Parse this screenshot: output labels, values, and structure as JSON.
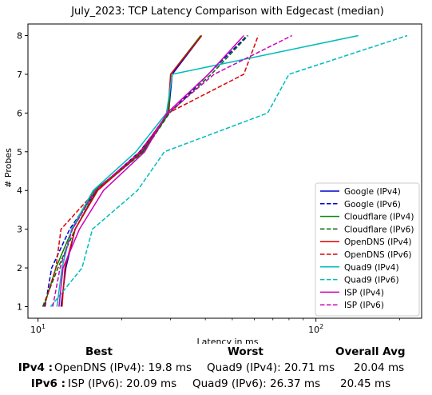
{
  "chart_data": {
    "type": "line",
    "title": "July_2023: TCP Latency Comparison with Edgecast (median)",
    "xlabel": "Latency in ms",
    "ylabel": "# Probes",
    "xscale": "log",
    "xlim": [
      9.2,
      240
    ],
    "ylim": [
      0.7,
      8.3
    ],
    "xticks": [
      {
        "value": 10,
        "label": "10^1"
      },
      {
        "value": 100,
        "label": "10^2"
      }
    ],
    "yticks": [
      1,
      2,
      3,
      4,
      5,
      6,
      7,
      8
    ],
    "legend_position": "lower right",
    "series": [
      {
        "name": "Google (IPv4)",
        "color": "#0000cc",
        "dash": false,
        "points": [
          [
            12.1,
            1
          ],
          [
            12.6,
            2
          ],
          [
            13.6,
            3
          ],
          [
            16.3,
            4
          ],
          [
            23.8,
            5
          ],
          [
            29.5,
            6
          ],
          [
            30.4,
            7
          ],
          [
            38.8,
            8
          ]
        ]
      },
      {
        "name": "Google (IPv6)",
        "color": "#0000cc",
        "dash": true,
        "points": [
          [
            10.6,
            1
          ],
          [
            11.2,
            2
          ],
          [
            13.0,
            3
          ],
          [
            16.2,
            4
          ],
          [
            23.2,
            5
          ],
          [
            29.7,
            6
          ],
          [
            41.0,
            7
          ],
          [
            56.5,
            8
          ]
        ]
      },
      {
        "name": "Cloudflare (IPv4)",
        "color": "#008800",
        "dash": false,
        "points": [
          [
            10.5,
            1
          ],
          [
            11.6,
            2
          ],
          [
            13.3,
            3
          ],
          [
            15.9,
            4
          ],
          [
            23.9,
            5
          ],
          [
            29.6,
            6
          ],
          [
            30.0,
            7
          ],
          [
            38.5,
            8
          ]
        ]
      },
      {
        "name": "Cloudflare (IPv6)",
        "color": "#006600",
        "dash": true,
        "points": [
          [
            10.4,
            1
          ],
          [
            11.8,
            2
          ],
          [
            13.6,
            3
          ],
          [
            16.2,
            4
          ],
          [
            24.0,
            5
          ],
          [
            29.7,
            6
          ],
          [
            42.0,
            7
          ],
          [
            57.0,
            8
          ]
        ]
      },
      {
        "name": "OpenDNS (IPv4)",
        "color": "#dd0000",
        "dash": false,
        "points": [
          [
            12.2,
            1
          ],
          [
            12.5,
            2
          ],
          [
            13.6,
            3
          ],
          [
            16.4,
            4
          ],
          [
            23.5,
            5
          ],
          [
            29.3,
            6
          ],
          [
            30.0,
            7
          ],
          [
            38.8,
            8
          ]
        ]
      },
      {
        "name": "OpenDNS (IPv6)",
        "color": "#dd0000",
        "dash": true,
        "points": [
          [
            10.5,
            1
          ],
          [
            11.6,
            2
          ],
          [
            12.1,
            3
          ],
          [
            16.2,
            4
          ],
          [
            23.3,
            5
          ],
          [
            29.4,
            6
          ],
          [
            55.0,
            7
          ],
          [
            62.0,
            8
          ]
        ]
      },
      {
        "name": "Quad9 (IPv4)",
        "color": "#00bbbb",
        "dash": false,
        "points": [
          [
            11.7,
            1
          ],
          [
            12.2,
            2
          ],
          [
            13.2,
            3
          ],
          [
            15.8,
            4
          ],
          [
            22.5,
            5
          ],
          [
            29.0,
            6
          ],
          [
            30.4,
            7
          ],
          [
            142,
            8
          ]
        ]
      },
      {
        "name": "Quad9 (IPv6)",
        "color": "#00bbbb",
        "dash": true,
        "points": [
          [
            11.1,
            1
          ],
          [
            14.4,
            2
          ],
          [
            15.7,
            3
          ],
          [
            22.8,
            4
          ],
          [
            28.5,
            5
          ],
          [
            67.0,
            6
          ],
          [
            80.0,
            7
          ],
          [
            213,
            8
          ]
        ]
      },
      {
        "name": "ISP (IPv4)",
        "color": "#cc00bb",
        "dash": false,
        "points": [
          [
            11.9,
            1
          ],
          [
            12.3,
            2
          ],
          [
            14.1,
            3
          ],
          [
            17.2,
            4
          ],
          [
            24.2,
            5
          ],
          [
            29.1,
            6
          ],
          [
            41.0,
            7
          ],
          [
            55.0,
            8
          ]
        ]
      },
      {
        "name": "ISP (IPv6)",
        "color": "#cc00bb",
        "dash": true,
        "points": [
          [
            11.3,
            1
          ],
          [
            12.0,
            2
          ],
          [
            13.3,
            3
          ],
          [
            16.1,
            4
          ],
          [
            23.3,
            5
          ],
          [
            29.4,
            6
          ],
          [
            43.0,
            7
          ],
          [
            82.0,
            8
          ]
        ]
      }
    ]
  },
  "stats": {
    "headers": {
      "best": "Best",
      "worst": "Worst",
      "avg": "Overall Avg"
    },
    "rows": [
      {
        "label": "IPv4 :",
        "best": "OpenDNS (IPv4): 19.8 ms",
        "worst": "Quad9 (IPv4): 20.71 ms",
        "avg": "20.04 ms"
      },
      {
        "label": "IPv6 :",
        "best": "ISP (IPv6): 20.09 ms",
        "worst": "Quad9 (IPv6): 26.37 ms",
        "avg": "20.45 ms"
      }
    ]
  }
}
